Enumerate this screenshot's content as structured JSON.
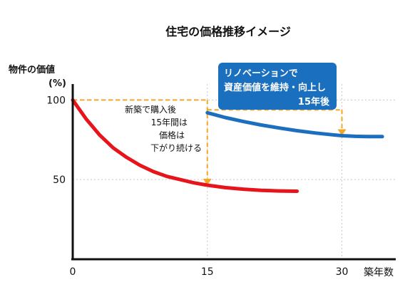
{
  "chart_data": {
    "type": "line",
    "title": "住宅の価格推移イメージ",
    "ylabel": "物件の価値",
    "yunit": "(%)",
    "xlabel": "築年数",
    "xlim": [
      0,
      36
    ],
    "ylim": [
      0,
      110
    ],
    "x_ticks": [
      0,
      15,
      30
    ],
    "x_tick_labels": [
      "0",
      "15",
      "30"
    ],
    "y_ticks": [
      100,
      50
    ],
    "y_tick_labels": [
      "100",
      "50"
    ],
    "grid": true,
    "series": [
      {
        "color": "#e8141b",
        "points": [
          [
            0,
            100
          ],
          [
            1.5,
            88
          ],
          [
            3,
            78
          ],
          [
            4.5,
            70
          ],
          [
            6,
            64
          ],
          [
            7.5,
            59
          ],
          [
            9,
            55
          ],
          [
            10.5,
            52
          ],
          [
            12,
            50
          ],
          [
            13.5,
            48
          ],
          [
            15,
            46.5
          ],
          [
            17,
            45
          ],
          [
            19,
            44
          ],
          [
            21,
            43.3
          ],
          [
            23,
            42.9
          ],
          [
            25,
            42.7
          ]
        ]
      },
      {
        "color": "#1b6fbe",
        "points": [
          [
            15,
            92
          ],
          [
            17,
            89
          ],
          [
            19,
            86.5
          ],
          [
            21,
            84.3
          ],
          [
            23,
            82.4
          ],
          [
            25,
            80.7
          ],
          [
            27,
            79.3
          ],
          [
            29,
            78.1
          ],
          [
            30,
            77.6
          ],
          [
            31.5,
            77.2
          ],
          [
            33,
            77
          ],
          [
            34.5,
            77
          ]
        ]
      }
    ],
    "guides_color": "#f5a623",
    "annotations": {
      "red_note": [
        "新築で購入後",
        "15年間は",
        "価格は",
        "下がり続ける"
      ],
      "callout_lines": [
        "リノベーションで",
        "資産価値を維持・向上し",
        "15年後"
      ],
      "callout_color": "#1a6fbf"
    }
  }
}
